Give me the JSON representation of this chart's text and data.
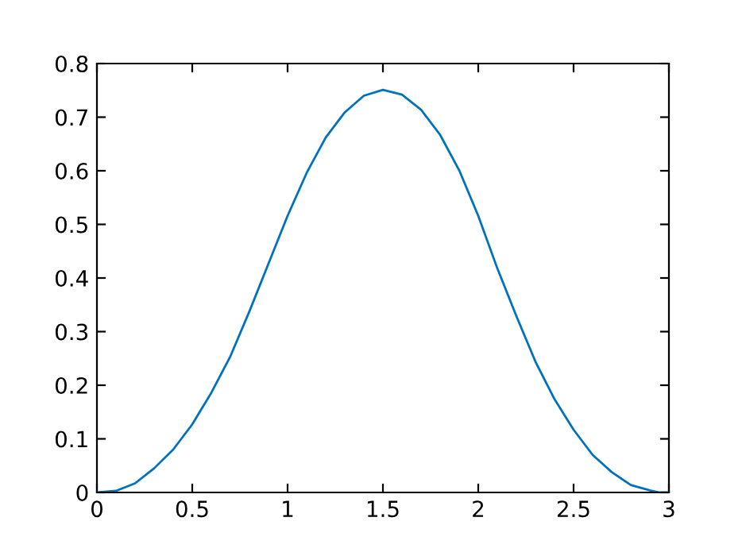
{
  "chart_data": {
    "type": "line",
    "x": [
      0,
      0.1,
      0.2,
      0.3,
      0.4,
      0.5,
      0.6,
      0.7,
      0.8,
      0.9,
      1.0,
      1.1,
      1.2,
      1.3,
      1.4,
      1.5,
      1.6,
      1.7,
      1.8,
      1.9,
      2.0,
      2.1,
      2.2,
      2.3,
      2.4,
      2.5,
      2.6,
      2.7,
      2.8,
      2.9,
      2.95,
      3.0
    ],
    "series": [
      {
        "color": "#0072bd",
        "values": [
          0,
          0.003,
          0.017,
          0.045,
          0.08,
          0.127,
          0.186,
          0.254,
          0.338,
          0.427,
          0.516,
          0.596,
          0.662,
          0.709,
          0.74,
          0.751,
          0.742,
          0.714,
          0.667,
          0.601,
          0.516,
          0.418,
          0.329,
          0.244,
          0.174,
          0.117,
          0.07,
          0.038,
          0.014,
          0.004,
          0,
          0
        ]
      }
    ],
    "xlim": [
      0,
      3
    ],
    "ylim": [
      0,
      0.8
    ],
    "xticks": [
      0,
      0.5,
      1,
      1.5,
      2,
      2.5,
      3
    ],
    "yticks": [
      0,
      0.1,
      0.2,
      0.3,
      0.4,
      0.5,
      0.6,
      0.7,
      0.8
    ],
    "grid": false,
    "marker": "none",
    "line_style": "solid"
  }
}
